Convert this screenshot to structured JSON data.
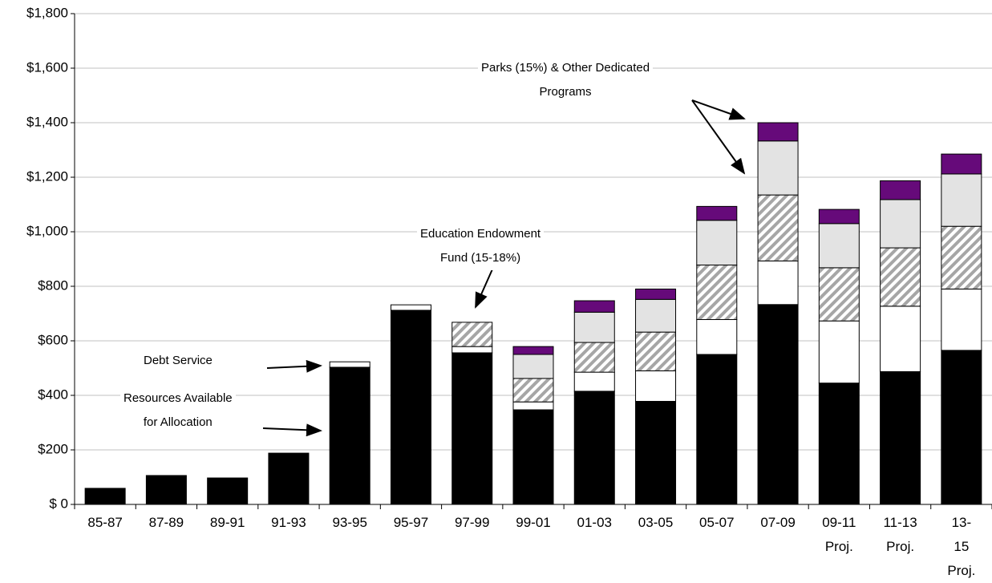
{
  "chart_data": {
    "type": "stacked-bar",
    "categories": [
      "85-87",
      "87-89",
      "89-91",
      "91-93",
      "93-95",
      "95-97",
      "97-99",
      "99-01",
      "01-03",
      "03-05",
      "05-07",
      "07-09",
      "09-11\nProj.",
      "11-13\nProj.",
      "13-15\nProj."
    ],
    "series": [
      {
        "color": "#000000",
        "values": [
          59,
          106,
          97,
          188,
          503,
          712,
          556,
          347,
          415,
          378,
          550,
          733,
          445,
          487,
          565
        ]
      },
      {
        "color": "#ffffff",
        "values": [
          null,
          null,
          null,
          null,
          20,
          20,
          23,
          29,
          70,
          112,
          128,
          160,
          228,
          240,
          225
        ]
      },
      {
        "color": "#a6a6a6",
        "pattern": "diagonal-hatch",
        "values": [
          null,
          null,
          null,
          null,
          null,
          null,
          89,
          86,
          109,
          142,
          200,
          242,
          195,
          214,
          230
        ]
      },
      {
        "color": "#e3e3e3",
        "values": [
          null,
          null,
          null,
          null,
          null,
          null,
          null,
          88,
          111,
          120,
          164,
          198,
          162,
          177,
          192
        ]
      },
      {
        "color": "#660a7a",
        "values": [
          null,
          null,
          null,
          null,
          null,
          null,
          null,
          29,
          42,
          38,
          51,
          67,
          52,
          69,
          73
        ]
      }
    ],
    "ylim": [
      0,
      1800
    ],
    "yticks": [
      {
        "value": 0,
        "label": "$ 0"
      },
      {
        "value": 200,
        "label": "$200"
      },
      {
        "value": 400,
        "label": "$400"
      },
      {
        "value": 600,
        "label": "$600"
      },
      {
        "value": 800,
        "label": "$800"
      },
      {
        "value": 1000,
        "label": "$1,000"
      },
      {
        "value": 1200,
        "label": "$1,200"
      },
      {
        "value": 1400,
        "label": "$1,400"
      },
      {
        "value": 1600,
        "label": "$1,600"
      },
      {
        "value": 1800,
        "label": "$1,800"
      }
    ],
    "grid": true,
    "annotations": [
      "Parks (15%) & Other Dedicated\nPrograms",
      "Education Endowment\nFund (15-18%)",
      "Debt Service",
      "Resources Available\nfor Allocation"
    ]
  }
}
